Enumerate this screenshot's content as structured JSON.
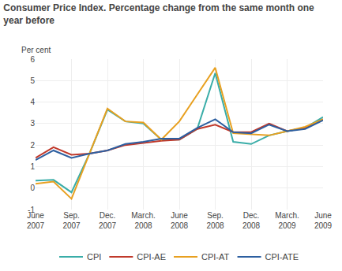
{
  "chart_data": {
    "type": "line",
    "title": "Consumer Price Index. Percentage change from the same month one\nyear before",
    "ylabel": "Per cent",
    "categories": [
      "June\n2007",
      null,
      "Sep.\n2007",
      null,
      "Dec.\n2007",
      null,
      "March.\n2008",
      null,
      "June\n2008",
      null,
      "Sep.\n2008",
      null,
      "Dec.\n2008",
      null,
      "March.\n2009",
      null,
      "June\n2009"
    ],
    "series": [
      {
        "name": "CPI",
        "color": "#3aada8",
        "values": [
          0.35,
          0.38,
          -0.2,
          1.6,
          3.65,
          3.1,
          3.0,
          2.25,
          2.25,
          2.75,
          5.35,
          2.15,
          2.05,
          2.45,
          2.65,
          2.8,
          3.3
        ]
      },
      {
        "name": "CPI-AE",
        "color": "#c0392b",
        "values": [
          1.4,
          1.9,
          1.55,
          1.6,
          1.75,
          2.0,
          2.1,
          2.2,
          2.25,
          2.75,
          2.95,
          2.6,
          2.6,
          3.0,
          2.65,
          2.8,
          3.2
        ]
      },
      {
        "name": "CPI-AT",
        "color": "#e8a020",
        "values": [
          0.2,
          0.3,
          -0.5,
          1.6,
          3.7,
          3.1,
          3.05,
          2.25,
          3.1,
          4.35,
          5.6,
          2.55,
          2.5,
          2.45,
          2.65,
          2.85,
          3.2
        ]
      },
      {
        "name": "CPI-ATE",
        "color": "#2d5fa0",
        "values": [
          1.3,
          1.75,
          1.4,
          1.6,
          1.75,
          2.05,
          2.15,
          2.3,
          2.3,
          2.8,
          3.2,
          2.6,
          2.55,
          2.95,
          2.65,
          2.75,
          3.15
        ]
      }
    ],
    "ylim": [
      -1,
      6
    ],
    "yticks": [
      -1,
      0,
      1,
      2,
      3,
      4,
      5,
      6
    ],
    "grid": true,
    "legend": "bottom"
  }
}
